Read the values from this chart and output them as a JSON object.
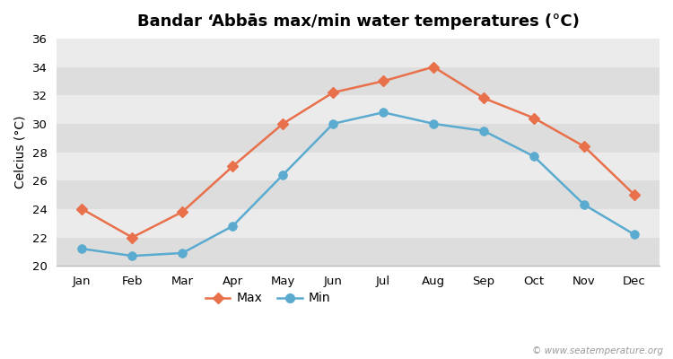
{
  "title": "Bandar ‘Abbās max/min water temperatures (°C)",
  "ylabel": "Celcius (°C)",
  "months": [
    "Jan",
    "Feb",
    "Mar",
    "Apr",
    "May",
    "Jun",
    "Jul",
    "Aug",
    "Sep",
    "Oct",
    "Nov",
    "Dec"
  ],
  "max_values": [
    24,
    22,
    23.8,
    27,
    30,
    32.2,
    33,
    34,
    31.8,
    30.4,
    28.4,
    25
  ],
  "min_values": [
    21.2,
    20.7,
    20.9,
    22.8,
    26.4,
    30,
    30.8,
    30,
    29.5,
    27.7,
    24.3,
    22.2
  ],
  "max_color": "#e8704a",
  "min_color": "#5aabcf",
  "fig_bg_color": "#ffffff",
  "plot_bg_color": "#ebebeb",
  "band_color_dark": "#dddddd",
  "band_color_light": "#ebebeb",
  "ylim": [
    20,
    36
  ],
  "yticks": [
    20,
    22,
    24,
    26,
    28,
    30,
    32,
    34,
    36
  ],
  "watermark": "© www.seatemperature.org",
  "title_fontsize": 13,
  "axis_label_fontsize": 10,
  "tick_fontsize": 9.5,
  "legend_fontsize": 10,
  "max_marker": "D",
  "min_marker": "o",
  "linewidth": 1.8,
  "max_markersize": 6,
  "min_markersize": 7
}
